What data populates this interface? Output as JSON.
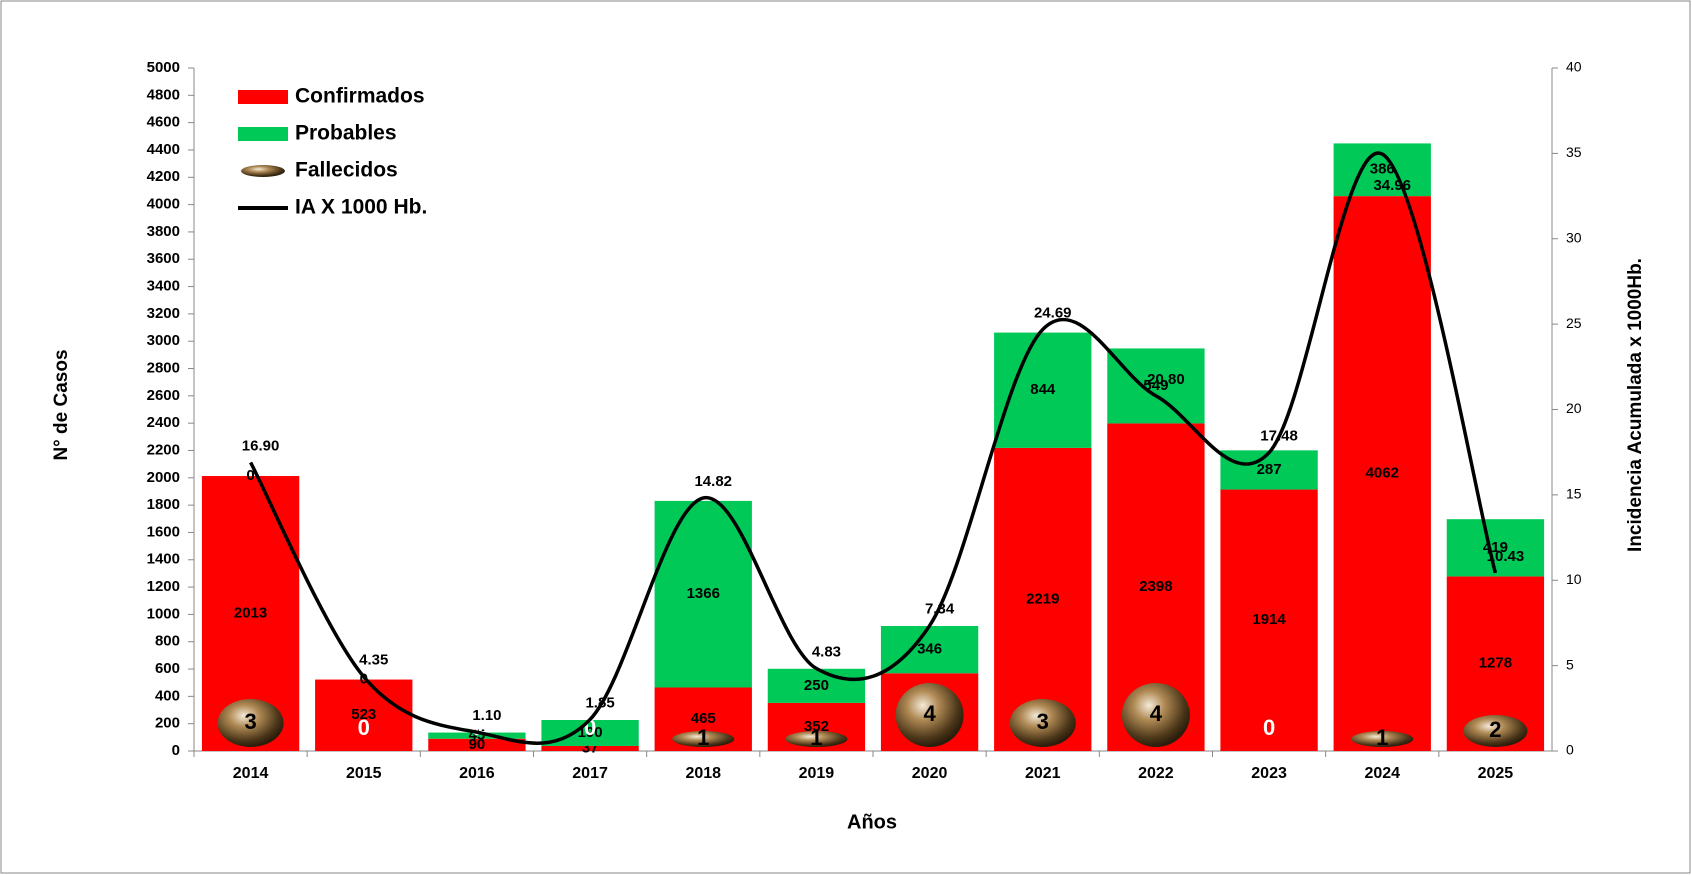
{
  "chart_data": {
    "type": "bar",
    "categories": [
      "2014",
      "2015",
      "2016",
      "2017",
      "2018",
      "2019",
      "2020",
      "2021",
      "2022",
      "2023",
      "2024",
      "2025"
    ],
    "series": [
      {
        "name": "Confirmados",
        "type": "bar",
        "color": "#ff0000",
        "values": [
          2013,
          523,
          90,
          37,
          465,
          352,
          569,
          2219,
          2398,
          1914,
          4062,
          1278
        ]
      },
      {
        "name": "Probables",
        "type": "bar",
        "color": "#00c957",
        "values": [
          0,
          0,
          45,
          190,
          1366,
          250,
          346,
          844,
          549,
          287,
          386,
          419
        ]
      },
      {
        "name": "Fallecidos",
        "type": "bubble",
        "color": "#8a6a3a",
        "values": [
          3,
          0,
          0,
          0,
          1,
          1,
          4,
          3,
          4,
          0,
          1,
          2
        ]
      },
      {
        "name": "IA X 1000 Hb.",
        "type": "line",
        "axis": "y2",
        "color": "#000000",
        "values": [
          16.9,
          4.35,
          1.1,
          1.85,
          14.82,
          4.83,
          7.34,
          24.69,
          20.8,
          17.48,
          34.96,
          10.43
        ],
        "value_labels": [
          "16.90",
          "4.35",
          "1.10",
          "1.85",
          "14.82",
          "4.83",
          "7.34",
          "24.69",
          "20.80",
          "17.48",
          "34.96",
          "10.43"
        ]
      }
    ],
    "xlabel": "Años",
    "ylabel": "N° de Casos",
    "y2label": "Incidencia Acumulada x 1000Hb.",
    "ylim": [
      0,
      5000
    ],
    "yticks": [
      0,
      200,
      400,
      600,
      800,
      1000,
      1200,
      1400,
      1600,
      1800,
      2000,
      2200,
      2400,
      2600,
      2800,
      3000,
      3200,
      3400,
      3600,
      3800,
      4000,
      4200,
      4400,
      4600,
      4800,
      5000
    ],
    "y2lim": [
      0,
      40
    ],
    "y2ticks": [
      0,
      5,
      10,
      15,
      20,
      25,
      30,
      35,
      40
    ],
    "legend": "upper left",
    "grid": false
  }
}
